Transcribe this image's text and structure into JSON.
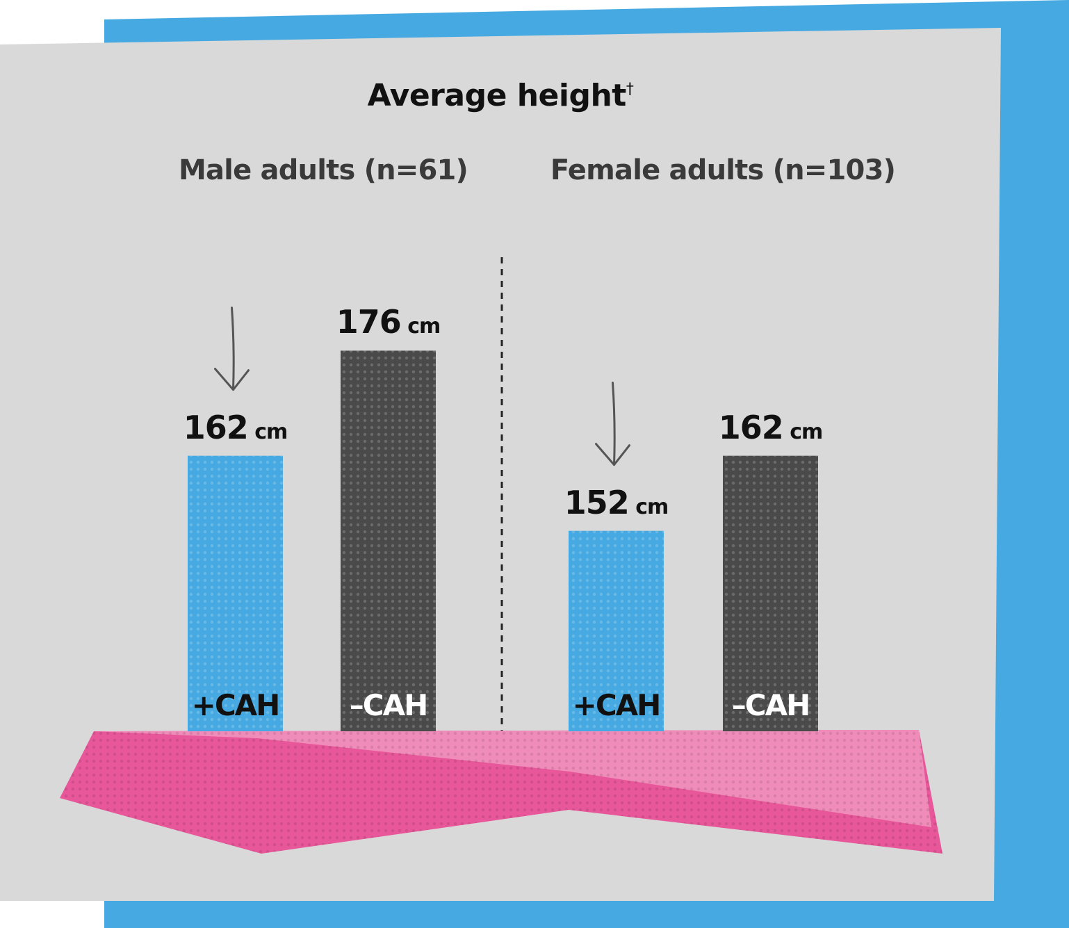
{
  "colors": {
    "frame_blue": "#47a9e1",
    "panel_gray": "#d9d9d9",
    "bar_with_cah": "#47a9e1",
    "bar_without_cah": "#4a4a4a",
    "ground_pink": "#e8579a",
    "ground_pink_light": "#f08cba"
  },
  "chart_data": {
    "type": "bar",
    "title": "Average height",
    "title_marker": "†",
    "unit": "cm",
    "grid": false,
    "groups": [
      {
        "label": "Male adults (n=61)",
        "bars": [
          {
            "category": "+CAH",
            "value": 162,
            "value_text": "162",
            "highlight_arrow": true
          },
          {
            "category": "–CAH",
            "value": 176,
            "value_text": "176",
            "highlight_arrow": false
          }
        ]
      },
      {
        "label": "Female adults (n=103)",
        "bars": [
          {
            "category": "+CAH",
            "value": 152,
            "value_text": "152",
            "highlight_arrow": true
          },
          {
            "category": "–CAH",
            "value": 162,
            "value_text": "162",
            "highlight_arrow": false
          }
        ]
      }
    ]
  }
}
